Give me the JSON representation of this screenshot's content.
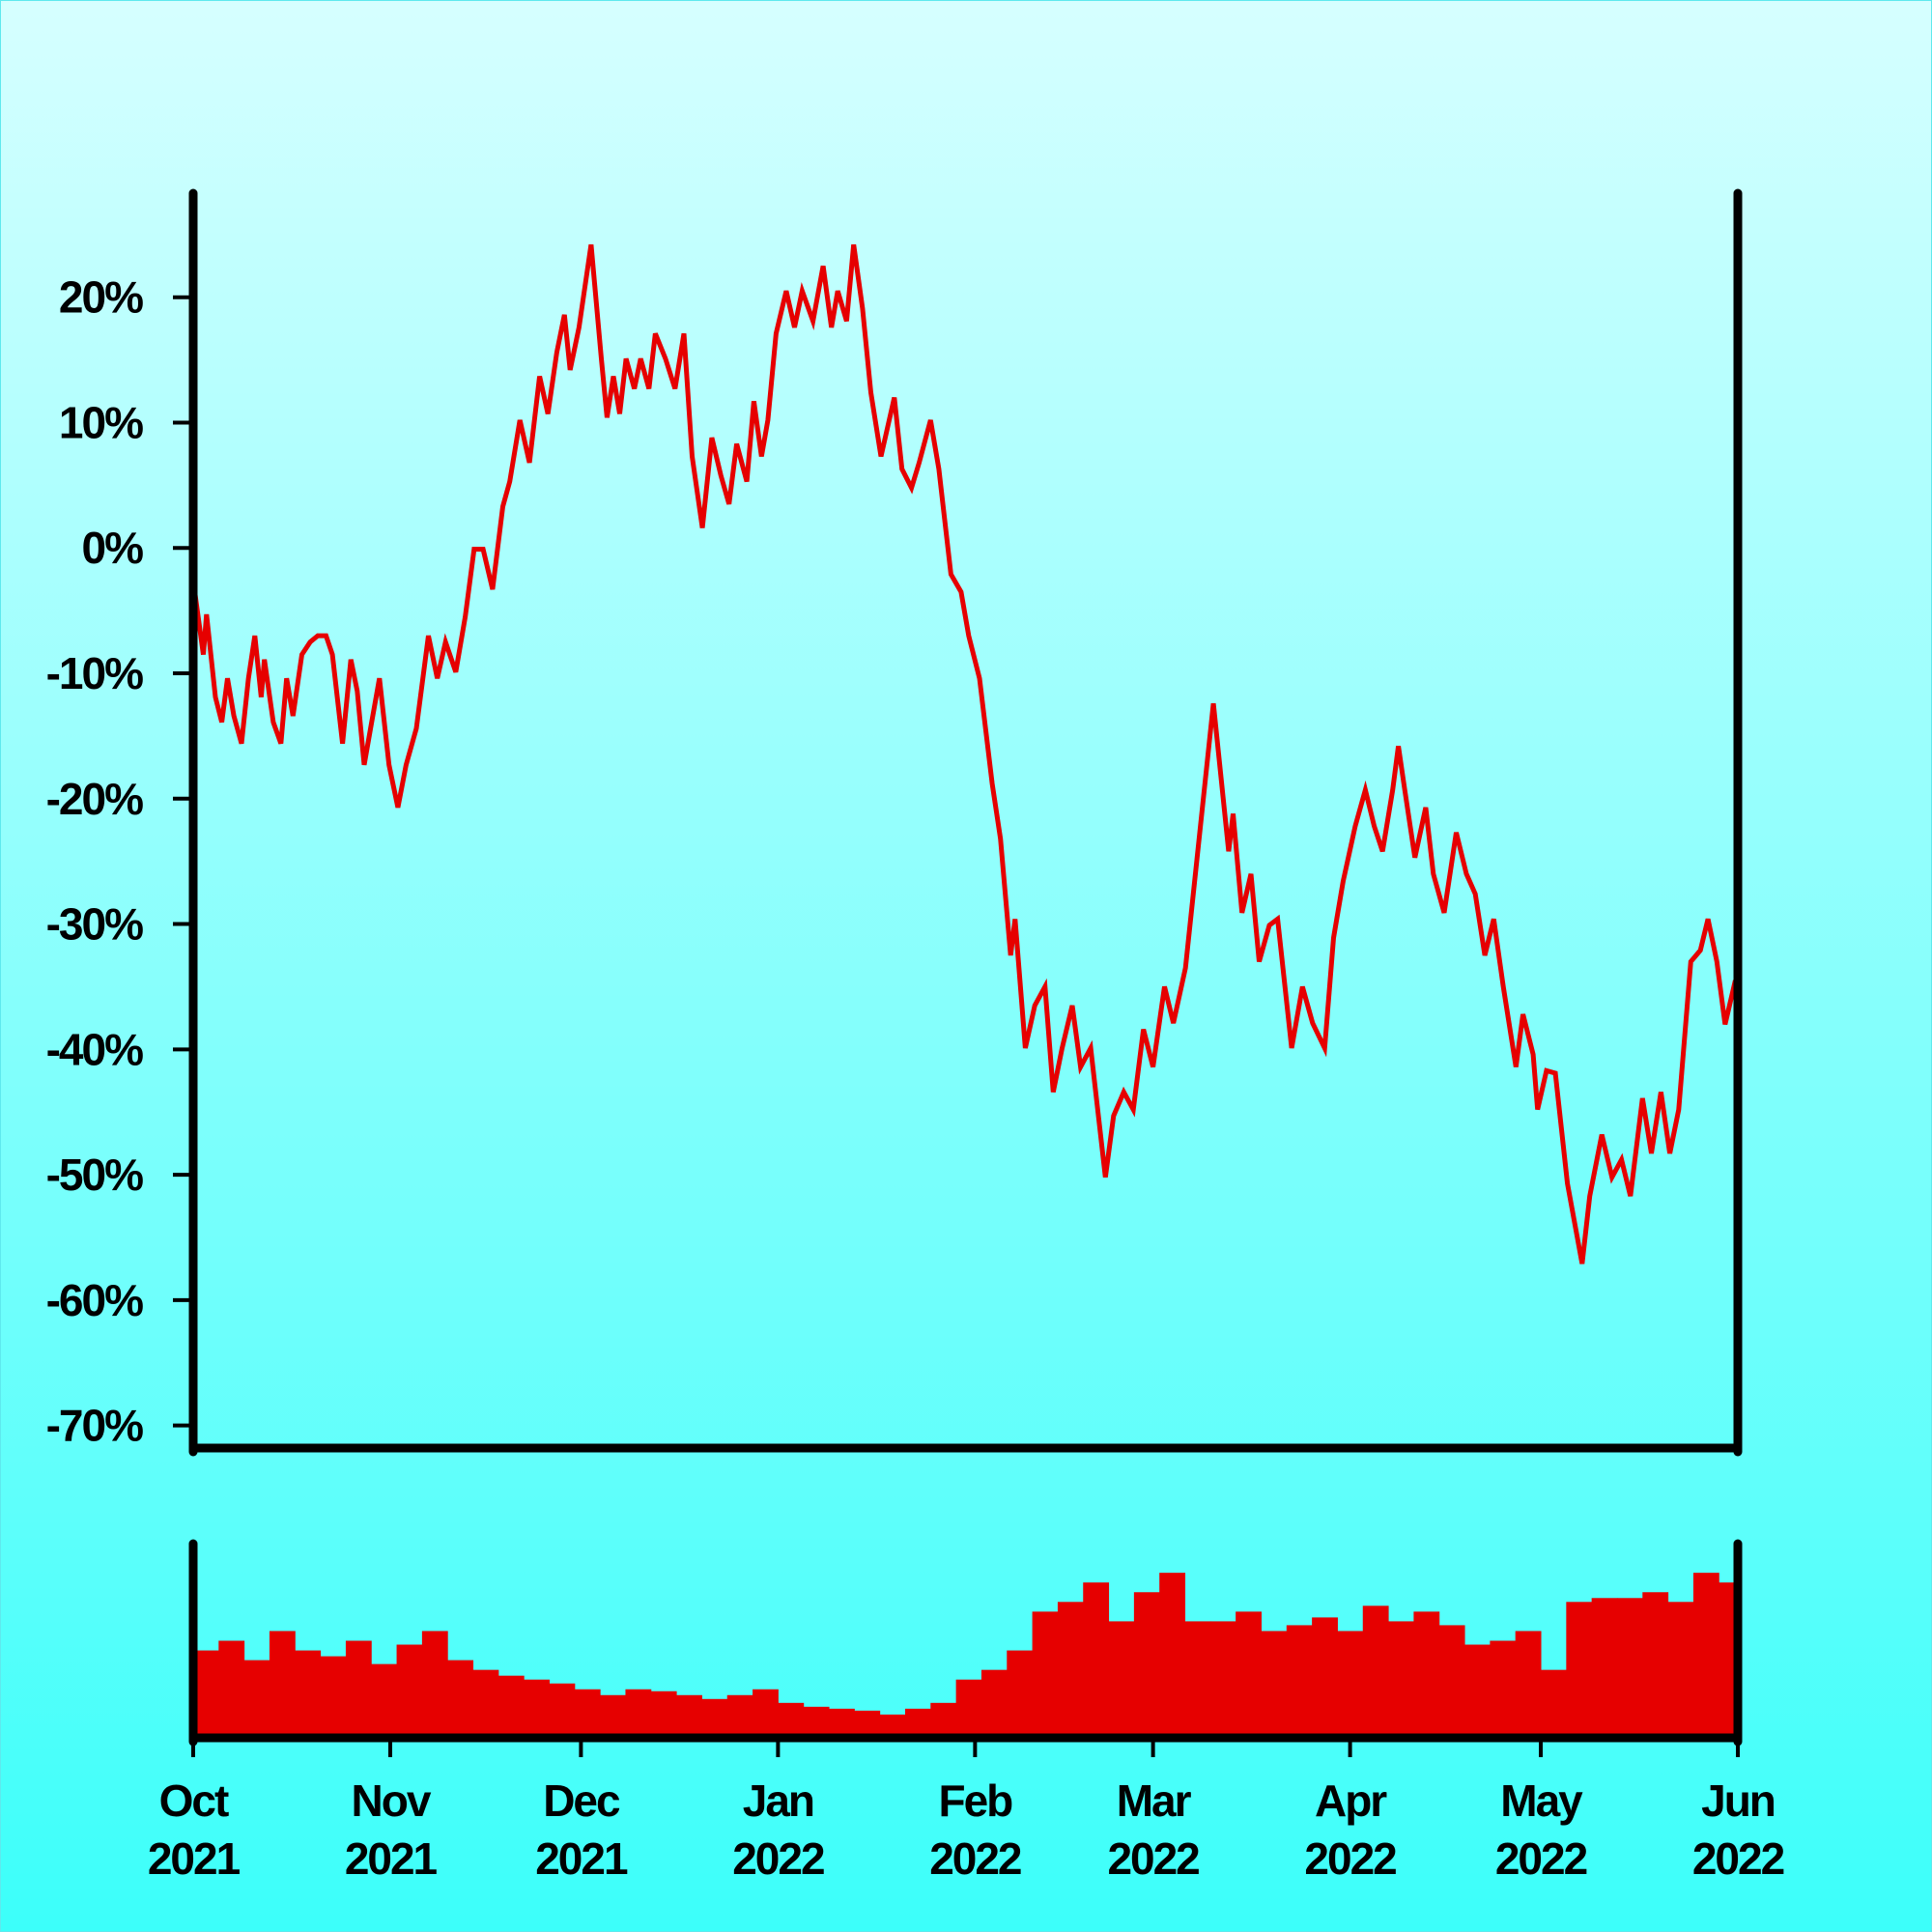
{
  "chart_data": [
    {
      "type": "line",
      "color": "#e60000",
      "xlim": [
        0,
        243
      ],
      "ylim": [
        -71.8,
        28.3
      ],
      "yticks": [
        {
          "value": 20,
          "label": "20%"
        },
        {
          "value": 10,
          "label": "10%"
        },
        {
          "value": 0,
          "label": "0%"
        },
        {
          "value": -10,
          "label": "-10%"
        },
        {
          "value": -20,
          "label": "-20%"
        },
        {
          "value": -30,
          "label": "-30%"
        },
        {
          "value": -40,
          "label": "-40%"
        },
        {
          "value": -50,
          "label": "-50%"
        },
        {
          "value": -60,
          "label": "-60%"
        },
        {
          "value": -70,
          "label": "-70%"
        }
      ],
      "x": [
        0,
        1.6,
        2.1,
        3.5,
        4.5,
        5.4,
        6.4,
        7.6,
        8.7,
        9.7,
        10.7,
        11.2,
        12.6,
        13.8,
        14.7,
        15.7,
        17.1,
        18.4,
        19.6,
        20.9,
        21.9,
        23.5,
        24.8,
        25.8,
        26.9,
        27.9,
        29.3,
        30.8,
        32.2,
        33.5,
        35.1,
        37.0,
        38.4,
        39.7,
        41.3,
        42.8,
        44.2,
        45.6,
        47.1,
        48.7,
        49.8,
        51.4,
        52.9,
        54.5,
        55.8,
        57.2,
        58.4,
        59.3,
        60.7,
        62.6,
        64.2,
        65.1,
        66.1,
        67.1,
        68.1,
        69.4,
        70.4,
        71.7,
        72.7,
        74.3,
        75.8,
        77.2,
        78.5,
        80.1,
        81.6,
        83.0,
        84.3,
        85.5,
        87.1,
        88.2,
        89.4,
        90.4,
        91.7,
        93.3,
        94.6,
        95.8,
        97.5,
        99.1,
        100.4,
        101.4,
        102.8,
        103.9,
        105.3,
        106.6,
        108.2,
        110.3,
        111.5,
        113.0,
        114.2,
        116.0,
        117.3,
        119.2,
        120.8,
        122.0,
        123.7,
        125.7,
        127.0,
        128.6,
        129.3,
        130.9,
        132.4,
        134.0,
        135.3,
        136.7,
        138.3,
        139.6,
        141.2,
        143.5,
        144.8,
        146.4,
        147.9,
        149.5,
        151.0,
        152.8,
        154.2,
        156.1,
        160.5,
        162.9,
        163.6,
        165.0,
        166.4,
        167.7,
        169.3,
        170.6,
        172.8,
        174.5,
        176.1,
        178.0,
        179.4,
        180.9,
        182.8,
        184.4,
        185.8,
        187.1,
        188.7,
        189.6,
        190.6,
        192.2,
        193.9,
        195.1,
        196.8,
        198.7,
        200.3,
        201.7,
        203.2,
        204.6,
        206.1,
        208.1,
        209.2,
        210.8,
        211.5,
        212.9,
        214.3,
        216.2,
        218.5,
        219.7,
        221.6,
        223.2,
        224.7,
        226.1,
        228.0,
        229.4,
        230.9,
        232.3,
        233.7,
        235.6,
        237.1,
        238.3,
        239.7,
        241.0,
        242.6
      ],
      "values": [
        -2.6,
        -8.5,
        -5.3,
        -11.9,
        -13.9,
        -10.4,
        -13.4,
        -15.6,
        -10.4,
        -7.0,
        -11.9,
        -8.9,
        -13.9,
        -15.6,
        -10.4,
        -13.4,
        -8.5,
        -7.5,
        -7.0,
        -7.0,
        -8.5,
        -15.6,
        -8.9,
        -11.4,
        -17.3,
        -14.4,
        -10.4,
        -17.3,
        -20.7,
        -17.3,
        -14.4,
        -7.0,
        -10.4,
        -7.5,
        -9.9,
        -5.5,
        -0.1,
        -0.1,
        -3.3,
        3.3,
        5.3,
        10.2,
        6.8,
        13.7,
        10.7,
        15.6,
        18.6,
        14.2,
        17.6,
        24.2,
        15.1,
        10.4,
        13.7,
        10.7,
        15.1,
        12.7,
        15.1,
        12.7,
        17.1,
        15.1,
        12.7,
        17.1,
        7.3,
        1.6,
        8.8,
        5.8,
        3.5,
        8.3,
        5.3,
        11.7,
        7.3,
        10.2,
        17.1,
        20.5,
        17.6,
        20.5,
        18.1,
        22.5,
        17.6,
        20.5,
        18.1,
        24.2,
        19.1,
        12.4,
        7.3,
        12.0,
        6.3,
        4.8,
        6.8,
        10.2,
        6.3,
        -2.1,
        -3.5,
        -7.0,
        -10.4,
        -18.8,
        -23.2,
        -32.5,
        -29.6,
        -39.9,
        -36.5,
        -35.0,
        -43.4,
        -39.9,
        -36.5,
        -41.4,
        -39.9,
        -50.2,
        -45.3,
        -43.4,
        -44.8,
        -38.4,
        -41.4,
        -35.0,
        -37.9,
        -33.5,
        -12.4,
        -24.2,
        -21.2,
        -29.1,
        -26.0,
        -33.0,
        -30.1,
        -29.6,
        -39.9,
        -35.0,
        -37.9,
        -39.9,
        -31.1,
        -26.6,
        -22.2,
        -19.3,
        -22.2,
        -24.2,
        -19.3,
        -15.8,
        -19.3,
        -24.7,
        -20.7,
        -26.0,
        -29.1,
        -22.7,
        -26.0,
        -27.6,
        -32.5,
        -29.6,
        -35.0,
        -41.4,
        -37.2,
        -40.4,
        -44.8,
        -41.7,
        -41.9,
        -50.7,
        -57.1,
        -51.7,
        -46.8,
        -50.2,
        -48.8,
        -51.7,
        -43.9,
        -48.3,
        -43.4,
        -48.3,
        -44.8,
        -33.0,
        -32.1,
        -29.6,
        -33.0,
        -38.0,
        -34.5
      ]
    },
    {
      "type": "bar",
      "color": "#e60000",
      "xlim": [
        0,
        243
      ],
      "ylim": [
        0,
        100
      ],
      "xticks": [
        {
          "value": 0,
          "label": "Oct 2021"
        },
        {
          "value": 31,
          "label": "Nov 2021"
        },
        {
          "value": 61,
          "label": "Dec 2021"
        },
        {
          "value": 92,
          "label": "Jan 2022"
        },
        {
          "value": 123,
          "label": "Feb 2022"
        },
        {
          "value": 151,
          "label": "Mar 2022"
        },
        {
          "value": 182,
          "label": "Apr 2022"
        },
        {
          "value": 212,
          "label": "May 2022"
        },
        {
          "value": 243,
          "label": "Jun 2022"
        }
      ],
      "x": [
        0,
        4,
        8,
        12,
        16,
        20,
        24,
        28,
        32,
        36,
        40,
        44,
        48,
        52,
        56,
        60,
        64,
        68,
        72,
        76,
        80,
        84,
        88,
        92,
        96,
        100,
        104,
        108,
        112,
        116,
        120,
        124,
        128,
        132,
        136,
        140,
        144,
        148,
        152,
        156,
        160,
        164,
        168,
        172,
        176,
        180,
        184,
        188,
        192,
        196,
        200,
        204,
        208,
        212,
        216,
        220,
        224,
        228,
        232,
        236,
        240
      ],
      "values": [
        45,
        50,
        40,
        55,
        45,
        42,
        50,
        38,
        48,
        55,
        40,
        35,
        32,
        30,
        28,
        25,
        22,
        25,
        24,
        22,
        20,
        22,
        25,
        18,
        16,
        15,
        14,
        12,
        15,
        18,
        30,
        35,
        45,
        65,
        70,
        80,
        60,
        75,
        85,
        60,
        60,
        65,
        55,
        58,
        62,
        55,
        68,
        60,
        65,
        58,
        48,
        50,
        55,
        35,
        70,
        72,
        72,
        75,
        70,
        85,
        80
      ]
    }
  ]
}
